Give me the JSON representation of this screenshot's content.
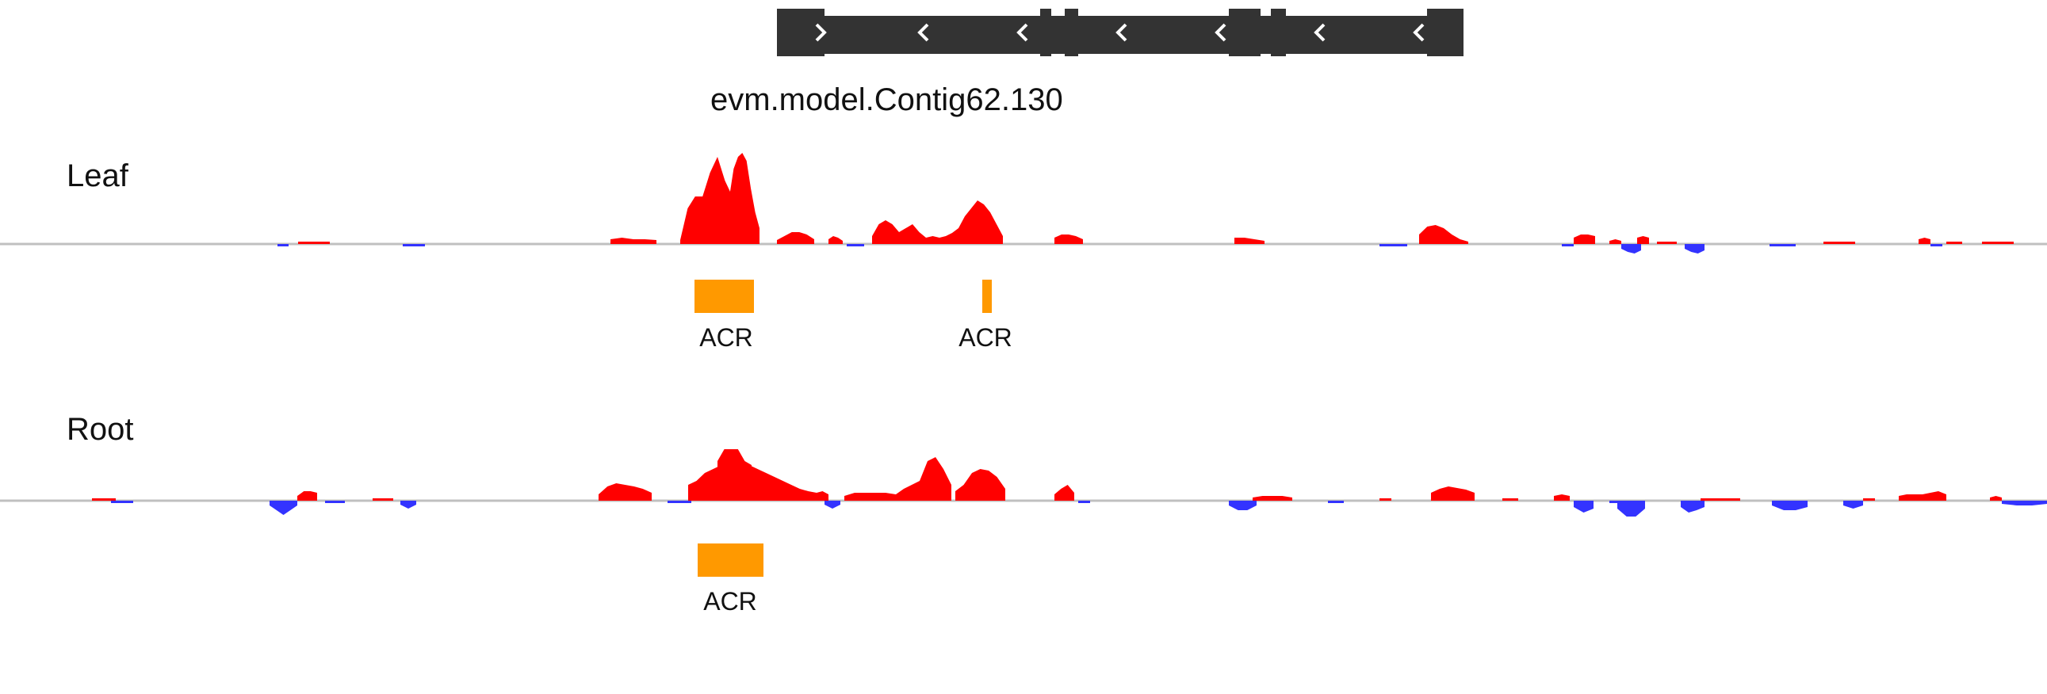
{
  "gene": {
    "name": "evm.model.Contig62.130",
    "strand_chevrons": [
      ">",
      "<",
      "<",
      "<",
      "<",
      "<",
      "<"
    ],
    "color": "#333333"
  },
  "colors": {
    "positive": "#ff0000",
    "negative": "#3333ff",
    "baseline": "#c0c0c0",
    "acr": "#ff9900"
  },
  "tracks": [
    {
      "label": "Leaf",
      "acr_regions": [
        {
          "label": "ACR"
        },
        {
          "label": "ACR"
        }
      ]
    },
    {
      "label": "Root",
      "acr_regions": [
        {
          "label": "ACR"
        }
      ]
    }
  ]
}
